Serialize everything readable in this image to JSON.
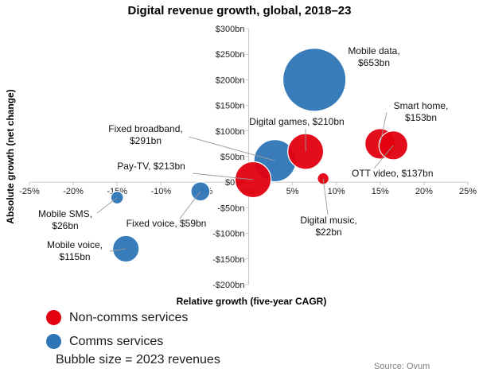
{
  "chart_data": {
    "type": "scatter",
    "title": "Digital revenue growth, global, 2018–23",
    "xlabel": "Relative growth (five-year CAGR)",
    "ylabel": "Absolute growth (net change)",
    "xlim": [
      -25,
      25
    ],
    "ylim": [
      -200,
      300
    ],
    "x_ticks": [
      {
        "value": -25,
        "label": "-25%"
      },
      {
        "value": -20,
        "label": "-20%"
      },
      {
        "value": -15,
        "label": "-15%"
      },
      {
        "value": -10,
        "label": "-10%"
      },
      {
        "value": -5,
        "label": "-5%"
      },
      {
        "value": 0,
        "label": "0%"
      },
      {
        "value": 5,
        "label": "5%"
      },
      {
        "value": 10,
        "label": "10%"
      },
      {
        "value": 15,
        "label": "15%"
      },
      {
        "value": 20,
        "label": "20%"
      },
      {
        "value": 25,
        "label": "25%"
      }
    ],
    "y_ticks": [
      {
        "value": 300,
        "label": "$300bn"
      },
      {
        "value": 250,
        "label": "$250bn"
      },
      {
        "value": 200,
        "label": "$200bn"
      },
      {
        "value": 150,
        "label": "$150bn"
      },
      {
        "value": 100,
        "label": "$100bn"
      },
      {
        "value": 50,
        "label": "$50bn"
      },
      {
        "value": 0,
        "label": "$0bn"
      },
      {
        "value": -50,
        "label": "-$50bn"
      },
      {
        "value": -100,
        "label": "-$100bn"
      },
      {
        "value": -150,
        "label": "-$150bn"
      },
      {
        "value": -200,
        "label": "-$200bn"
      }
    ],
    "series": [
      {
        "name": "Non-comms services",
        "color": "#e3000f",
        "points": [
          {
            "id": "digital-games",
            "label_line1": "Digital games, $210bn",
            "label_line2": "",
            "x": 6.5,
            "y": 60,
            "revenue": 210
          },
          {
            "id": "smart-home",
            "label_line1": "Smart home,",
            "label_line2": "$153bn",
            "x": 15,
            "y": 75,
            "revenue": 153
          },
          {
            "id": "ott-video",
            "label_line1": "OTT video, $137bn",
            "label_line2": "",
            "x": 16.5,
            "y": 72,
            "revenue": 137
          },
          {
            "id": "pay-tv",
            "label_line1": "Pay-TV, $213bn",
            "label_line2": "",
            "x": 0.5,
            "y": 5,
            "revenue": 213
          },
          {
            "id": "digital-music",
            "label_line1": "Digital music,",
            "label_line2": "$22bn",
            "x": 8.5,
            "y": 7,
            "revenue": 22
          }
        ]
      },
      {
        "name": "Comms services",
        "color": "#2e75b6",
        "points": [
          {
            "id": "mobile-data",
            "label_line1": "Mobile data,",
            "label_line2": "$653bn",
            "x": 7.5,
            "y": 200,
            "revenue": 653
          },
          {
            "id": "fixed-broadband",
            "label_line1": "Fixed broadband,",
            "label_line2": "$291bn",
            "x": 3,
            "y": 42,
            "revenue": 291
          },
          {
            "id": "fixed-voice",
            "label_line1": "Fixed voice, $59bn",
            "label_line2": "",
            "x": -5.5,
            "y": -18,
            "revenue": 59
          },
          {
            "id": "mobile-sms",
            "label_line1": "Mobile SMS,",
            "label_line2": "$26bn",
            "x": -15,
            "y": -30,
            "revenue": 26
          },
          {
            "id": "mobile-voice",
            "label_line1": "Mobile voice,",
            "label_line2": "$115bn",
            "x": -14,
            "y": -130,
            "revenue": 115
          }
        ]
      }
    ]
  },
  "legend": {
    "items": [
      {
        "label": "Non-comms services",
        "color": "#e3000f"
      },
      {
        "label": "Comms services",
        "color": "#2e75b6"
      }
    ]
  },
  "note": "Bubble size = 2023 revenues",
  "source": "Source: Ovum"
}
